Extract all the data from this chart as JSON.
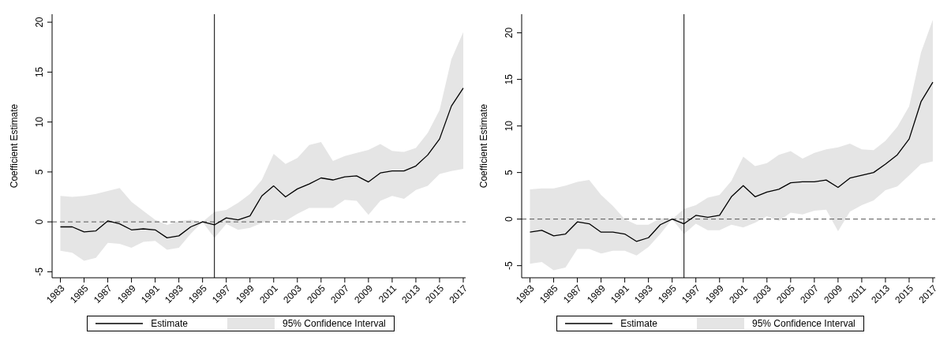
{
  "chart_data": [
    {
      "type": "line",
      "ylabel": "Coefficient Estimate",
      "x": [
        1983,
        1984,
        1985,
        1986,
        1987,
        1988,
        1989,
        1990,
        1991,
        1992,
        1993,
        1994,
        1995,
        1996,
        1997,
        1998,
        1999,
        2000,
        2001,
        2002,
        2003,
        2004,
        2005,
        2006,
        2007,
        2008,
        2009,
        2010,
        2011,
        2012,
        2013,
        2014,
        2015,
        2016,
        2017
      ],
      "series": [
        {
          "name": "Estimate",
          "color": "#000000",
          "values": [
            -0.5,
            -0.5,
            -1.0,
            -0.9,
            0.1,
            -0.2,
            -0.8,
            -0.7,
            -0.8,
            -1.6,
            -1.4,
            -0.5,
            0,
            -0.3,
            0.4,
            0.2,
            0.6,
            2.6,
            3.6,
            2.5,
            3.3,
            3.8,
            4.4,
            4.2,
            4.5,
            4.6,
            4.0,
            4.9,
            5.1,
            5.1,
            5.6,
            6.7,
            8.3,
            11.6,
            13.4
          ],
          "lower": [
            -2.9,
            -3.1,
            -3.9,
            -3.6,
            -2.1,
            -2.2,
            -2.6,
            -2.0,
            -1.9,
            -2.8,
            -2.6,
            -1.2,
            0,
            -1.6,
            -0.2,
            -0.8,
            -0.6,
            -0.1,
            0.2,
            0.1,
            0.8,
            1.4,
            1.4,
            1.4,
            2.2,
            2.1,
            0.7,
            2.1,
            2.6,
            2.3,
            3.2,
            3.6,
            4.8,
            5.1,
            5.3
          ],
          "upper": [
            2.6,
            2.5,
            2.6,
            2.8,
            3.1,
            3.4,
            2.0,
            1.1,
            0.2,
            -0.3,
            0.1,
            0.2,
            0,
            1.0,
            1.2,
            1.9,
            2.8,
            4.2,
            6.8,
            5.8,
            6.4,
            7.7,
            8.0,
            6.1,
            6.6,
            6.9,
            7.2,
            7.8,
            7.1,
            7.0,
            7.4,
            8.9,
            11.2,
            16.3,
            19.0
          ]
        }
      ],
      "annotations": [
        "95% Confidence Interval"
      ],
      "xlim": [
        1982.3,
        2017.2
      ],
      "xticks": [
        1983,
        1985,
        1987,
        1989,
        1991,
        1993,
        1995,
        1997,
        1999,
        2001,
        2003,
        2005,
        2007,
        2009,
        2011,
        2013,
        2015,
        2017
      ],
      "ylim": [
        -5.6,
        20.8
      ],
      "yticks": [
        -5,
        0,
        5,
        10,
        15,
        20
      ],
      "ref_lines": [
        {
          "axis": "y",
          "value": 0,
          "color": "#555555",
          "line_style": "dashed"
        },
        {
          "axis": "x",
          "value": 1996,
          "color": "#000000",
          "line_style": "solid"
        }
      ],
      "legend": "bottom"
    },
    {
      "type": "line",
      "ylabel": "Coefficient Estimate",
      "x": [
        1983,
        1984,
        1985,
        1986,
        1987,
        1988,
        1989,
        1990,
        1991,
        1992,
        1993,
        1994,
        1995,
        1996,
        1997,
        1998,
        1999,
        2000,
        2001,
        2002,
        2003,
        2004,
        2005,
        2006,
        2007,
        2008,
        2009,
        2010,
        2011,
        2012,
        2013,
        2014,
        2015,
        2016,
        2017
      ],
      "series": [
        {
          "name": "Estimate",
          "color": "#000000",
          "values": [
            -1.4,
            -1.2,
            -1.8,
            -1.6,
            -0.3,
            -0.5,
            -1.4,
            -1.4,
            -1.6,
            -2.4,
            -2.0,
            -0.6,
            0,
            -0.5,
            0.4,
            0.2,
            0.4,
            2.4,
            3.6,
            2.4,
            2.9,
            3.2,
            3.9,
            4.0,
            4.0,
            4.2,
            3.4,
            4.4,
            4.7,
            5.0,
            5.9,
            6.9,
            8.6,
            12.6,
            14.7
          ],
          "lower": [
            -4.8,
            -4.6,
            -5.5,
            -5.2,
            -3.2,
            -3.2,
            -3.7,
            -3.4,
            -3.4,
            -3.9,
            -3.0,
            -1.6,
            0,
            -1.6,
            -0.5,
            -1.2,
            -1.2,
            -0.6,
            -0.9,
            -0.4,
            0.3,
            -0.2,
            0.7,
            0.5,
            0.9,
            1.0,
            -1.3,
            0.8,
            1.5,
            2.0,
            3.1,
            3.5,
            4.7,
            5.9,
            6.2
          ],
          "upper": [
            3.2,
            3.3,
            3.3,
            3.6,
            4.0,
            4.2,
            2.6,
            1.4,
            0,
            -0.6,
            -0.6,
            0.1,
            0,
            1.1,
            1.5,
            2.3,
            2.6,
            4.1,
            6.7,
            5.7,
            6.0,
            6.9,
            7.3,
            6.5,
            7.1,
            7.5,
            7.7,
            8.1,
            7.5,
            7.4,
            8.4,
            9.9,
            12.1,
            17.9,
            21.4
          ]
        }
      ],
      "annotations": [
        "95% Confidence Interval"
      ],
      "xlim": [
        1982.3,
        2017.2
      ],
      "xticks": [
        1983,
        1985,
        1987,
        1989,
        1991,
        1993,
        1995,
        1997,
        1999,
        2001,
        2003,
        2005,
        2007,
        2009,
        2011,
        2013,
        2015,
        2017
      ],
      "ylim": [
        -6.3,
        22
      ],
      "yticks": [
        -5,
        0,
        5,
        10,
        15,
        20
      ],
      "ref_lines": [
        {
          "axis": "y",
          "value": 0,
          "color": "#555555",
          "line_style": "dashed"
        },
        {
          "axis": "x",
          "value": 1996,
          "color": "#000000",
          "line_style": "solid"
        }
      ],
      "legend": "bottom"
    }
  ]
}
